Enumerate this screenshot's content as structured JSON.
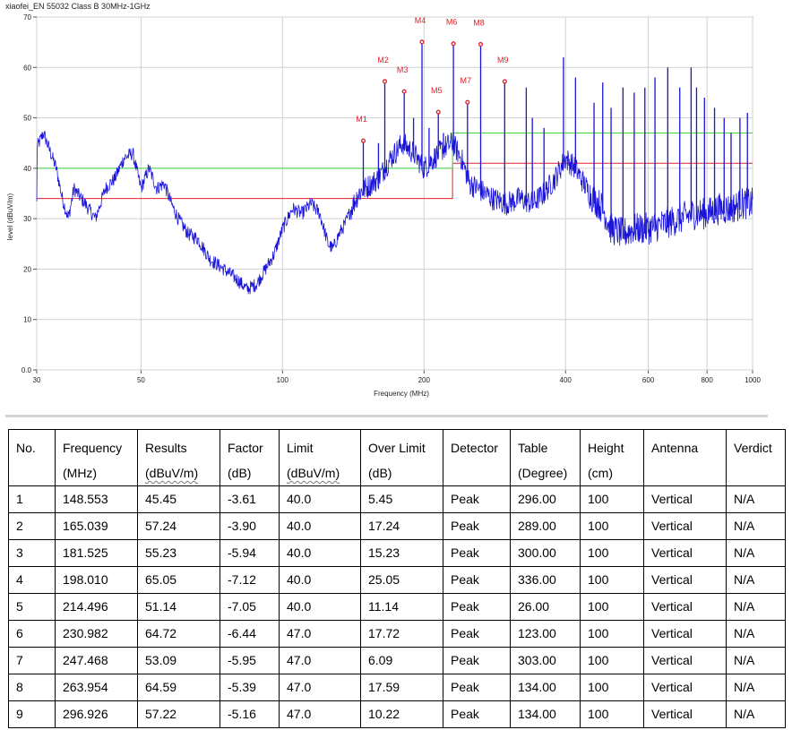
{
  "chart_data": {
    "type": "line",
    "title": "xiaofei_EN 55032 Class B 30MHz-1GHz",
    "xlabel": "Frequency (MHz)",
    "ylabel": "level (dBuV/m)",
    "x_scale": "log",
    "xlim": [
      30,
      1000
    ],
    "ylim": [
      0,
      70
    ],
    "x_ticks": [
      30,
      50,
      100,
      200,
      400,
      600,
      800,
      1000
    ],
    "x_tick_labels": [
      "30",
      "50",
      "100",
      "200",
      "400",
      "600",
      "800",
      "1000"
    ],
    "y_ticks": [
      0,
      10,
      20,
      30,
      40,
      50,
      60,
      70
    ],
    "y_tick_labels": [
      "0.0",
      "10",
      "20",
      "30",
      "40",
      "50",
      "60",
      "70"
    ],
    "grid": true,
    "colors": {
      "trace": "#1a14d8",
      "limit_qp": "#e0202a",
      "limit_margin": "#40d040",
      "marker": "#e0202a"
    },
    "limit_lines": [
      {
        "color": "#e0202a",
        "points": [
          [
            30,
            34
          ],
          [
            230,
            34
          ],
          [
            230,
            41
          ],
          [
            1000,
            41
          ]
        ]
      },
      {
        "color": "#40d040",
        "points": [
          [
            30,
            40
          ],
          [
            230,
            40
          ],
          [
            230,
            47
          ],
          [
            1000,
            47
          ]
        ]
      }
    ],
    "trace_envelope": [
      [
        30,
        44
      ],
      [
        31,
        47
      ],
      [
        33,
        40
      ],
      [
        34,
        34
      ],
      [
        35,
        30
      ],
      [
        36,
        36
      ],
      [
        38,
        33
      ],
      [
        40,
        30
      ],
      [
        42,
        36
      ],
      [
        44,
        38
      ],
      [
        46,
        42
      ],
      [
        48,
        43
      ],
      [
        50,
        36
      ],
      [
        52,
        40
      ],
      [
        54,
        36
      ],
      [
        56,
        37
      ],
      [
        58,
        33
      ],
      [
        60,
        30
      ],
      [
        63,
        27
      ],
      [
        66,
        26
      ],
      [
        70,
        22
      ],
      [
        75,
        20
      ],
      [
        80,
        18
      ],
      [
        84,
        16
      ],
      [
        88,
        17
      ],
      [
        92,
        20
      ],
      [
        96,
        23
      ],
      [
        100,
        28
      ],
      [
        105,
        32
      ],
      [
        110,
        31
      ],
      [
        115,
        33
      ],
      [
        120,
        31
      ],
      [
        125,
        25
      ],
      [
        128,
        24
      ],
      [
        132,
        27
      ],
      [
        136,
        29
      ],
      [
        140,
        32
      ],
      [
        145,
        35
      ],
      [
        150,
        36
      ],
      [
        160,
        38
      ],
      [
        170,
        42
      ],
      [
        180,
        45
      ],
      [
        190,
        43
      ],
      [
        200,
        40
      ],
      [
        210,
        42
      ],
      [
        220,
        44
      ],
      [
        230,
        45
      ],
      [
        240,
        42
      ],
      [
        250,
        37
      ],
      [
        260,
        36
      ],
      [
        270,
        35
      ],
      [
        280,
        34
      ],
      [
        300,
        33
      ],
      [
        320,
        34
      ],
      [
        340,
        33
      ],
      [
        360,
        35
      ],
      [
        380,
        38
      ],
      [
        400,
        42
      ],
      [
        420,
        40
      ],
      [
        450,
        35
      ],
      [
        480,
        32
      ],
      [
        500,
        28
      ],
      [
        530,
        27
      ],
      [
        560,
        28
      ],
      [
        600,
        28
      ],
      [
        650,
        29
      ],
      [
        700,
        30
      ],
      [
        750,
        31
      ],
      [
        800,
        31
      ],
      [
        850,
        32
      ],
      [
        900,
        32
      ],
      [
        950,
        33
      ],
      [
        1000,
        33
      ]
    ],
    "spikes": [
      [
        148.553,
        45.45
      ],
      [
        165.039,
        57.24
      ],
      [
        181.525,
        55.23
      ],
      [
        198.01,
        65.05
      ],
      [
        214.496,
        51.14
      ],
      [
        230.982,
        64.72
      ],
      [
        247.468,
        53.09
      ],
      [
        263.954,
        64.59
      ],
      [
        296.926,
        57.22
      ],
      [
        160,
        45
      ],
      [
        190,
        50
      ],
      [
        205,
        48
      ],
      [
        220,
        47
      ],
      [
        330,
        56
      ],
      [
        340,
        50
      ],
      [
        360,
        48
      ],
      [
        396,
        62
      ],
      [
        420,
        58
      ],
      [
        460,
        53
      ],
      [
        480,
        57
      ],
      [
        500,
        52
      ],
      [
        530,
        56
      ],
      [
        560,
        55
      ],
      [
        590,
        56
      ],
      [
        620,
        58
      ],
      [
        660,
        60
      ],
      [
        700,
        56
      ],
      [
        740,
        60
      ],
      [
        760,
        56
      ],
      [
        790,
        54
      ],
      [
        830,
        52
      ],
      [
        870,
        50
      ],
      [
        900,
        47
      ],
      [
        940,
        50
      ],
      [
        975,
        51
      ]
    ],
    "markers": [
      {
        "label": "M1",
        "freq": 148.553,
        "level": 45.45
      },
      {
        "label": "M2",
        "freq": 165.039,
        "level": 57.24
      },
      {
        "label": "M3",
        "freq": 181.525,
        "level": 55.23
      },
      {
        "label": "M4",
        "freq": 198.01,
        "level": 65.05
      },
      {
        "label": "M5",
        "freq": 214.496,
        "level": 51.14
      },
      {
        "label": "M6",
        "freq": 230.982,
        "level": 64.72
      },
      {
        "label": "M7",
        "freq": 247.468,
        "level": 53.09
      },
      {
        "label": "M8",
        "freq": 263.954,
        "level": 64.59
      },
      {
        "label": "M9",
        "freq": 296.926,
        "level": 57.22
      }
    ]
  },
  "table": {
    "headers": [
      {
        "line1": "No.",
        "line2": ""
      },
      {
        "line1": "Frequency",
        "line2": "(MHz)"
      },
      {
        "line1": "Results",
        "line2": "(dBuV/m)"
      },
      {
        "line1": "Factor",
        "line2": "(dB)"
      },
      {
        "line1": "Limit",
        "line2": "(dBuV/m)"
      },
      {
        "line1": "Over Limit",
        "line2": "(dB)"
      },
      {
        "line1": "Detector",
        "line2": ""
      },
      {
        "line1": "Table",
        "line2": "(Degree)"
      },
      {
        "line1": "Height",
        "line2": "(cm)"
      },
      {
        "line1": "Antenna",
        "line2": ""
      },
      {
        "line1": "Verdict",
        "line2": ""
      }
    ],
    "rows": [
      [
        "1",
        "148.553",
        "45.45",
        "-3.61",
        "40.0",
        "5.45",
        "Peak",
        "296.00",
        "100",
        "Vertical",
        "N/A"
      ],
      [
        "2",
        "165.039",
        "57.24",
        "-3.90",
        "40.0",
        "17.24",
        "Peak",
        "289.00",
        "100",
        "Vertical",
        "N/A"
      ],
      [
        "3",
        "181.525",
        "55.23",
        "-5.94",
        "40.0",
        "15.23",
        "Peak",
        "300.00",
        "100",
        "Vertical",
        "N/A"
      ],
      [
        "4",
        "198.010",
        "65.05",
        "-7.12",
        "40.0",
        "25.05",
        "Peak",
        "336.00",
        "100",
        "Vertical",
        "N/A"
      ],
      [
        "5",
        "214.496",
        "51.14",
        "-7.05",
        "40.0",
        "11.14",
        "Peak",
        "26.00",
        "100",
        "Vertical",
        "N/A"
      ],
      [
        "6",
        "230.982",
        "64.72",
        "-6.44",
        "47.0",
        "17.72",
        "Peak",
        "123.00",
        "100",
        "Vertical",
        "N/A"
      ],
      [
        "7",
        "247.468",
        "53.09",
        "-5.95",
        "47.0",
        "6.09",
        "Peak",
        "303.00",
        "100",
        "Vertical",
        "N/A"
      ],
      [
        "8",
        "263.954",
        "64.59",
        "-5.39",
        "47.0",
        "17.59",
        "Peak",
        "134.00",
        "100",
        "Vertical",
        "N/A"
      ],
      [
        "9",
        "296.926",
        "57.22",
        "-5.16",
        "47.0",
        "10.22",
        "Peak",
        "134.00",
        "100",
        "Vertical",
        "N/A"
      ]
    ]
  }
}
